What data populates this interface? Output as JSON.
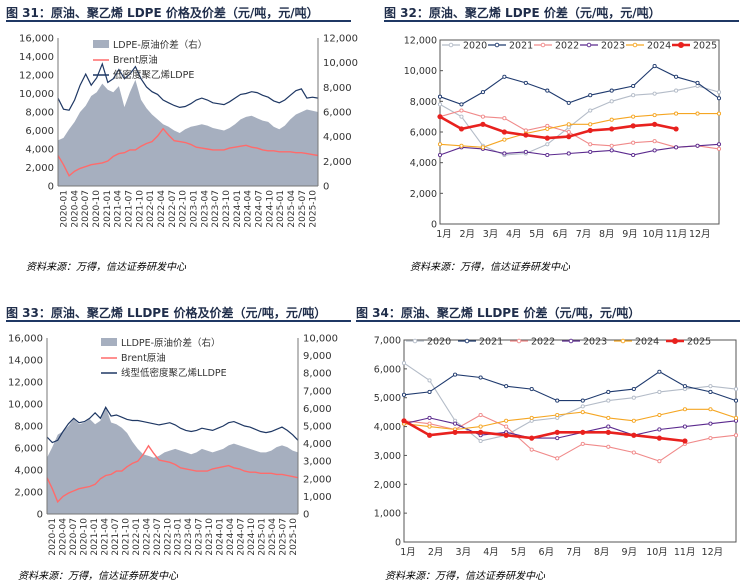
{
  "source_text": "资料来源：万得，信达证券研发中心",
  "month_labels": [
    "1月",
    "2月",
    "3月",
    "4月",
    "5月",
    "6月",
    "7月",
    "8月",
    "9月",
    "10月",
    "11月",
    "12月"
  ],
  "colors": {
    "area": "#a6afbf",
    "brent": "#ff6b6b",
    "resin": "#1f3864",
    "c2020": "#b4bcc8",
    "c2021": "#1f3a6e",
    "c2022": "#f08a8a",
    "c2023": "#5b2a8e",
    "c2024": "#f5a623",
    "c2025": "#e8211e",
    "header": "#1f2d4a"
  },
  "chart_data": [
    {
      "id": "fig31",
      "type": "area+line",
      "title": "图 31：原油、聚乙烯 LDPE 价格及价差（元/吨，元/吨）",
      "left_ylim": [
        0,
        16000
      ],
      "left_ticks": [
        "0",
        "2,000",
        "4,000",
        "6,000",
        "8,000",
        "10,000",
        "12,000",
        "14,000",
        "16,000"
      ],
      "right_ylim": [
        0,
        12000
      ],
      "right_ticks": [
        "0",
        "2,000",
        "4,000",
        "6,000",
        "8,000",
        "10,000",
        "12,000"
      ],
      "x_labels": [
        "2020-01",
        "2020-04",
        "2020-07",
        "2020-10",
        "2021-01",
        "2021-04",
        "2021-07",
        "2021-10",
        "2022-01",
        "2022-04",
        "2022-07",
        "2022-10",
        "2023-01",
        "2023-04",
        "2023-07",
        "2023-10",
        "2024-01",
        "2024-04",
        "2024-07",
        "2024-10",
        "2025-01",
        "2025-04",
        "2025-07",
        "2025-10"
      ],
      "legend": [
        "LDPE-原油价差（右）",
        "Brent原油",
        "低密度聚乙烯LDPE"
      ],
      "spread_right": [
        3700,
        3900,
        4600,
        5200,
        6000,
        6500,
        7300,
        7600,
        8300,
        7800,
        7600,
        8100,
        6400,
        7600,
        8600,
        7000,
        6300,
        5800,
        5400,
        5000,
        4800,
        4500,
        4300,
        4600,
        4800,
        4900,
        5000,
        4900,
        4700,
        4600,
        4500,
        4700,
        5000,
        5400,
        5600,
        5700,
        5500,
        5300,
        5200,
        4800,
        4600,
        4900,
        5400,
        5800,
        6000,
        6200,
        6100,
        6000
      ],
      "brent": [
        3300,
        2300,
        1100,
        1600,
        1900,
        2100,
        2300,
        2400,
        2500,
        2700,
        3200,
        3500,
        3600,
        3900,
        3900,
        4300,
        4600,
        4800,
        5400,
        6200,
        5500,
        4900,
        4800,
        4700,
        4500,
        4200,
        4100,
        4000,
        3900,
        3900,
        3900,
        4100,
        4200,
        4300,
        4400,
        4200,
        4100,
        3900,
        3800,
        3800,
        3700,
        3700,
        3700,
        3600,
        3600,
        3500,
        3400,
        3300
      ],
      "ldpe": [
        9500,
        8300,
        8200,
        9300,
        10900,
        12100,
        10900,
        11700,
        13200,
        11200,
        11600,
        12600,
        11600,
        12100,
        12900,
        11600,
        10700,
        10200,
        9900,
        9300,
        9000,
        8700,
        8500,
        8600,
        8900,
        9300,
        9500,
        9300,
        9000,
        8900,
        8800,
        9100,
        9500,
        9900,
        10000,
        10200,
        10100,
        9800,
        9600,
        9200,
        9000,
        9300,
        9800,
        10300,
        10500,
        9500,
        9600,
        9500
      ]
    },
    {
      "id": "fig32",
      "type": "line",
      "title": "图 32：原油、聚乙烯 LDPE 价差（元/吨，元/吨）",
      "ylim": [
        0,
        12000
      ],
      "y_ticks": [
        "0",
        "2,000",
        "4,000",
        "6,000",
        "8,000",
        "10,000",
        "12,000"
      ],
      "series": [
        {
          "name": "2020",
          "values": [
            7800,
            7000,
            5100,
            4500,
            4600,
            5200,
            6300,
            7400,
            8000,
            8400,
            8500,
            8700,
            9000,
            8600
          ]
        },
        {
          "name": "2021",
          "values": [
            8300,
            7800,
            8600,
            9600,
            9200,
            8700,
            7900,
            8400,
            8700,
            9000,
            10300,
            9600,
            9200,
            8200
          ]
        },
        {
          "name": "2022",
          "values": [
            7000,
            7400,
            7000,
            6900,
            6100,
            6400,
            6000,
            5200,
            5100,
            5300,
            5400,
            5000,
            5100,
            4900
          ]
        },
        {
          "name": "2023",
          "values": [
            4500,
            5000,
            4900,
            4600,
            4700,
            4500,
            4600,
            4700,
            4800,
            4500,
            4800,
            5000,
            5100,
            5200
          ]
        },
        {
          "name": "2024",
          "values": [
            5200,
            5100,
            5000,
            5500,
            5900,
            6200,
            6500,
            6500,
            6800,
            7000,
            7100,
            7200,
            7200,
            7200
          ]
        },
        {
          "name": "2025",
          "values": [
            7000,
            6200,
            6500,
            6000,
            5800,
            5600,
            5700,
            6100,
            6200,
            6400,
            6500,
            6200,
            null,
            null
          ]
        }
      ]
    },
    {
      "id": "fig33",
      "type": "area+line",
      "title": "图 33：原油、聚乙烯 LLDPE 价格及价差（元/吨，元/吨）",
      "left_ylim": [
        0,
        16000
      ],
      "left_ticks": [
        "0",
        "2,000",
        "4,000",
        "6,000",
        "8,000",
        "10,000",
        "12,000",
        "14,000",
        "16,000"
      ],
      "right_ylim": [
        0,
        10000
      ],
      "right_ticks": [
        "0",
        "1,000",
        "2,000",
        "3,000",
        "4,000",
        "5,000",
        "6,000",
        "7,000",
        "8,000",
        "9,000",
        "10,000"
      ],
      "x_labels": [
        "2020-01",
        "2020-04",
        "2020-07",
        "2020-10",
        "2021-01",
        "2021-04",
        "2021-07",
        "2021-10",
        "2022-01",
        "2022-04",
        "2022-07",
        "2022-10",
        "2023-01",
        "2023-04",
        "2023-07",
        "2023-10",
        "2024-01",
        "2024-04",
        "2024-07",
        "2024-10",
        "2025-01",
        "2025-04",
        "2025-07",
        "2025-10"
      ],
      "legend": [
        "LLDPE-原油价差（右）",
        "Brent原油",
        "线型低密度聚乙烯LLDPE"
      ],
      "spread_right": [
        3200,
        3800,
        4500,
        4700,
        5000,
        5400,
        5100,
        5200,
        5400,
        5100,
        5300,
        6100,
        5200,
        5100,
        4900,
        4600,
        4100,
        3700,
        3400,
        3300,
        3200,
        3300,
        3500,
        3600,
        3700,
        3600,
        3500,
        3400,
        3500,
        3700,
        3600,
        3500,
        3600,
        3700,
        3900,
        4000,
        3900,
        3800,
        3700,
        3600,
        3500,
        3500,
        3600,
        3800,
        3900,
        3800,
        3600,
        3500
      ],
      "brent": [
        3300,
        2300,
        1100,
        1600,
        1900,
        2100,
        2300,
        2400,
        2500,
        2700,
        3200,
        3500,
        3600,
        3900,
        3900,
        4300,
        4600,
        4800,
        5400,
        6200,
        5500,
        4900,
        4800,
        4700,
        4500,
        4200,
        4100,
        4000,
        3900,
        3900,
        3900,
        4100,
        4200,
        4300,
        4400,
        4200,
        4100,
        3900,
        3800,
        3800,
        3700,
        3700,
        3700,
        3600,
        3600,
        3500,
        3400,
        3300
      ],
      "lldpe": [
        7000,
        6500,
        6700,
        7500,
        8200,
        8700,
        8300,
        8400,
        8700,
        9200,
        8700,
        9700,
        8900,
        9000,
        8800,
        8600,
        8500,
        8500,
        8400,
        8300,
        8200,
        8100,
        8200,
        8300,
        8100,
        7800,
        7600,
        7500,
        7600,
        7800,
        7700,
        7600,
        7800,
        8000,
        8300,
        8400,
        8200,
        8000,
        7900,
        7700,
        7500,
        7400,
        7500,
        7700,
        7900,
        7600,
        7200,
        6700
      ]
    },
    {
      "id": "fig34",
      "type": "line",
      "title": "图 34：原油、聚乙烯 LLDPE 价差（元/吨，元/吨）",
      "ylim": [
        0,
        7000
      ],
      "y_ticks": [
        "0",
        "1,000",
        "2,000",
        "3,000",
        "4,000",
        "5,000",
        "6,000",
        "7,000"
      ],
      "series": [
        {
          "name": "2020",
          "values": [
            6200,
            5600,
            4200,
            3500,
            3700,
            4200,
            4300,
            4700,
            4900,
            5000,
            5200,
            5300,
            5400,
            5300
          ]
        },
        {
          "name": "2021",
          "values": [
            5100,
            5200,
            5800,
            5700,
            5400,
            5300,
            4900,
            4900,
            5200,
            5300,
            5900,
            5400,
            5200,
            4900
          ]
        },
        {
          "name": "2022",
          "values": [
            4200,
            4100,
            3900,
            4400,
            4000,
            3200,
            2900,
            3400,
            3300,
            3100,
            2800,
            3400,
            3600,
            3700
          ]
        },
        {
          "name": "2023",
          "values": [
            4100,
            4300,
            4100,
            3700,
            3800,
            3600,
            3600,
            3800,
            4000,
            3700,
            3900,
            4000,
            4100,
            4200
          ]
        },
        {
          "name": "2024",
          "values": [
            4100,
            4000,
            3900,
            4000,
            4200,
            4300,
            4400,
            4500,
            4300,
            4200,
            4400,
            4600,
            4600,
            4300
          ]
        },
        {
          "name": "2025",
          "values": [
            4200,
            3700,
            3800,
            3800,
            3700,
            3600,
            3800,
            3800,
            3800,
            3700,
            3600,
            3500,
            null,
            null
          ]
        }
      ]
    }
  ]
}
